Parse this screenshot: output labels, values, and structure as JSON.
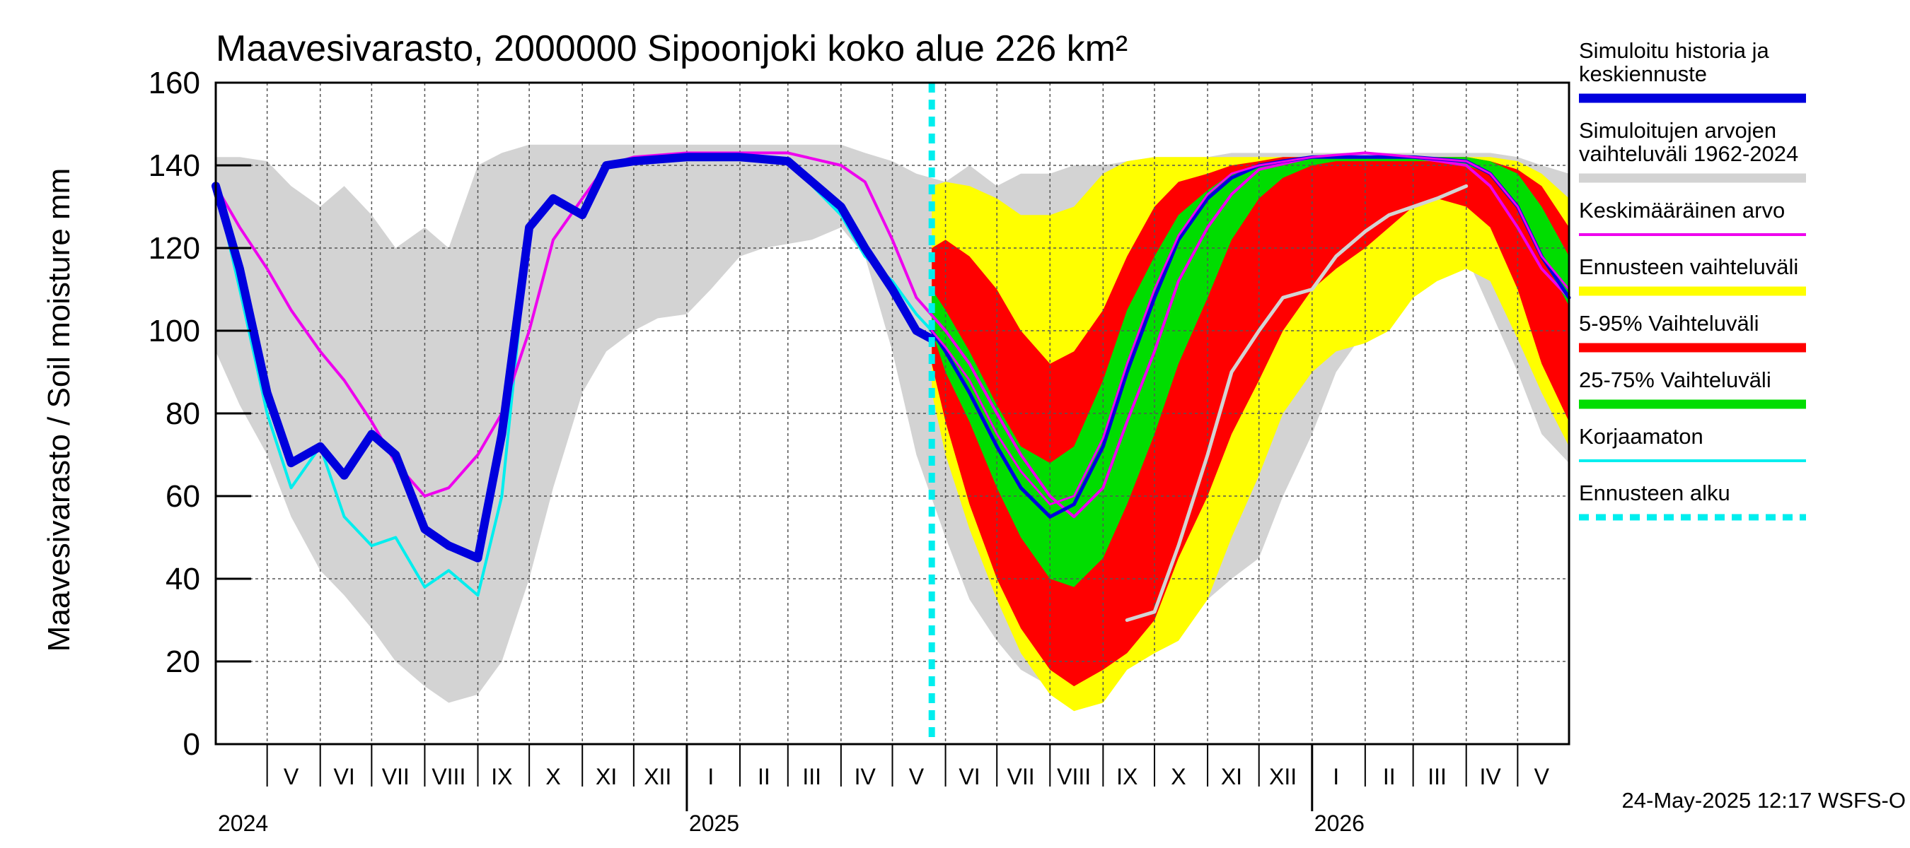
{
  "chart_data": {
    "type": "area",
    "title": "Maavesivarasto, 2000000 Sipoonjoki koko alue 226 km²",
    "ylabel": "Maavesivarasto / Soil moisture   mm",
    "ylim": [
      0,
      160
    ],
    "yticks": [
      0,
      20,
      40,
      60,
      80,
      100,
      120,
      140,
      160
    ],
    "x_range": [
      "2024-04-01",
      "2026-05-31"
    ],
    "forecast_start": "2025-05-24",
    "grid": true,
    "legend_position": "right",
    "footer": "24-May-2025 12:17 WSFS-O",
    "month_ticks": [
      {
        "label": "V",
        "date": "2024-05-15"
      },
      {
        "label": "VI",
        "date": "2024-06-15"
      },
      {
        "label": "VII",
        "date": "2024-07-15"
      },
      {
        "label": "VIII",
        "date": "2024-08-15"
      },
      {
        "label": "IX",
        "date": "2024-09-15"
      },
      {
        "label": "X",
        "date": "2024-10-15"
      },
      {
        "label": "XI",
        "date": "2024-11-15"
      },
      {
        "label": "XII",
        "date": "2024-12-15"
      },
      {
        "label": "I",
        "date": "2025-01-15"
      },
      {
        "label": "II",
        "date": "2025-02-15"
      },
      {
        "label": "III",
        "date": "2025-03-15"
      },
      {
        "label": "IV",
        "date": "2025-04-15"
      },
      {
        "label": "V",
        "date": "2025-05-15"
      },
      {
        "label": "VI",
        "date": "2025-06-15"
      },
      {
        "label": "VII",
        "date": "2025-07-15"
      },
      {
        "label": "VIII",
        "date": "2025-08-15"
      },
      {
        "label": "IX",
        "date": "2025-09-15"
      },
      {
        "label": "X",
        "date": "2025-10-15"
      },
      {
        "label": "XI",
        "date": "2025-11-15"
      },
      {
        "label": "XII",
        "date": "2025-12-15"
      },
      {
        "label": "I",
        "date": "2026-01-15"
      },
      {
        "label": "II",
        "date": "2026-02-15"
      },
      {
        "label": "III",
        "date": "2026-03-15"
      },
      {
        "label": "IV",
        "date": "2026-04-15"
      },
      {
        "label": "V",
        "date": "2026-05-15"
      }
    ],
    "year_labels": [
      {
        "label": "2024",
        "date": "2024-04-01"
      },
      {
        "label": "2025",
        "date": "2025-01-01"
      },
      {
        "label": "2026",
        "date": "2026-01-01"
      }
    ],
    "legend": [
      {
        "label": "Simuloitu historia ja\nkeskiennuste",
        "color": "#0000dd",
        "style": "thick"
      },
      {
        "label": "Simuloitujen arvojen\nvaihteluväli 1962-2024",
        "color": "#d3d3d3",
        "style": "thick"
      },
      {
        "label": "Keskimääräinen arvo",
        "color": "#ee00ee",
        "style": "thin"
      },
      {
        "label": "Ennusteen vaihteluväli",
        "color": "#ffff00",
        "style": "thick"
      },
      {
        "label": "5-95% Vaihteluväli",
        "color": "#ff0000",
        "style": "thick"
      },
      {
        "label": "25-75% Vaihteluväli",
        "color": "#00dd00",
        "style": "thick"
      },
      {
        "label": "Korjaamaton",
        "color": "#00eeee",
        "style": "thin"
      },
      {
        "label": "Ennusteen alku",
        "color": "#00eeee",
        "style": "dashed"
      }
    ],
    "series": [
      {
        "key": "hist_range",
        "kind": "band",
        "color": "#d3d3d3",
        "x": [
          "2024-04-01",
          "2024-04-15",
          "2024-05-01",
          "2024-05-15",
          "2024-06-01",
          "2024-06-15",
          "2024-07-01",
          "2024-07-15",
          "2024-08-01",
          "2024-08-15",
          "2024-09-01",
          "2024-09-15",
          "2024-10-01",
          "2024-10-15",
          "2024-11-01",
          "2024-11-15",
          "2024-12-01",
          "2024-12-15",
          "2025-01-01",
          "2025-01-15",
          "2025-02-01",
          "2025-02-15",
          "2025-03-01",
          "2025-03-15",
          "2025-04-01",
          "2025-04-15",
          "2025-05-01",
          "2025-05-15",
          "2025-06-01",
          "2025-06-15",
          "2025-07-01",
          "2025-07-15",
          "2025-08-01",
          "2025-08-15",
          "2025-09-01",
          "2025-09-15",
          "2025-10-01",
          "2025-10-15",
          "2025-11-01",
          "2025-11-15",
          "2025-12-01",
          "2025-12-15",
          "2026-01-01",
          "2026-01-15",
          "2026-02-01",
          "2026-02-15",
          "2026-03-01",
          "2026-03-15",
          "2026-04-01",
          "2026-04-15",
          "2026-05-01",
          "2026-05-15",
          "2026-05-31"
        ],
        "low": [
          95,
          82,
          70,
          55,
          42,
          36,
          28,
          20,
          14,
          10,
          12,
          20,
          40,
          62,
          85,
          95,
          100,
          103,
          104,
          110,
          118,
          120,
          121,
          122,
          125,
          118,
          95,
          70,
          50,
          35,
          25,
          18,
          14,
          12,
          15,
          22,
          28,
          30,
          35,
          40,
          45,
          60,
          75,
          90,
          100,
          110,
          118,
          122,
          118,
          105,
          90,
          75,
          68
        ],
        "high": [
          142,
          142,
          141,
          135,
          130,
          135,
          128,
          120,
          125,
          120,
          140,
          143,
          145,
          145,
          145,
          145,
          145,
          145,
          145,
          145,
          145,
          145,
          145,
          145,
          145,
          143,
          141,
          138,
          136,
          140,
          135,
          138,
          138,
          140,
          140,
          141,
          142,
          142,
          142,
          143,
          143,
          143,
          143,
          143,
          143,
          143,
          143,
          143,
          143,
          143,
          142,
          140,
          138
        ]
      },
      {
        "key": "forecast_range",
        "kind": "band",
        "color": "#ffff00",
        "x": [
          "2025-05-24",
          "2025-06-01",
          "2025-06-15",
          "2025-07-01",
          "2025-07-15",
          "2025-08-01",
          "2025-08-15",
          "2025-09-01",
          "2025-09-15",
          "2025-10-01",
          "2025-10-15",
          "2025-11-01",
          "2025-11-15",
          "2025-12-01",
          "2025-12-15",
          "2026-01-01",
          "2026-01-15",
          "2026-02-01",
          "2026-02-15",
          "2026-03-01",
          "2026-03-15",
          "2026-04-01",
          "2026-04-15",
          "2026-05-01",
          "2026-05-15",
          "2026-05-31"
        ],
        "low": [
          85,
          70,
          52,
          35,
          22,
          12,
          8,
          10,
          18,
          22,
          25,
          35,
          50,
          65,
          80,
          90,
          95,
          97,
          100,
          108,
          112,
          115,
          112,
          98,
          85,
          72
        ],
        "high": [
          135,
          136,
          135,
          132,
          128,
          128,
          130,
          138,
          141,
          142,
          142,
          142,
          142,
          142,
          142,
          142,
          142,
          142,
          142,
          142,
          142,
          142,
          142,
          141,
          138,
          132
        ]
      },
      {
        "key": "p5_95",
        "kind": "band",
        "color": "#ff0000",
        "x": [
          "2025-05-24",
          "2025-06-01",
          "2025-06-15",
          "2025-07-01",
          "2025-07-15",
          "2025-08-01",
          "2025-08-15",
          "2025-09-01",
          "2025-09-15",
          "2025-10-01",
          "2025-10-15",
          "2025-11-01",
          "2025-11-15",
          "2025-12-01",
          "2025-12-15",
          "2026-01-01",
          "2026-01-15",
          "2026-02-01",
          "2026-02-15",
          "2026-03-01",
          "2026-03-15",
          "2026-04-01",
          "2026-04-15",
          "2026-05-01",
          "2026-05-15",
          "2026-05-31"
        ],
        "low": [
          92,
          78,
          58,
          40,
          28,
          18,
          14,
          18,
          22,
          30,
          45,
          60,
          75,
          88,
          100,
          110,
          115,
          120,
          125,
          130,
          132,
          130,
          125,
          110,
          92,
          78
        ],
        "high": [
          120,
          122,
          118,
          110,
          100,
          92,
          95,
          105,
          118,
          130,
          136,
          138,
          140,
          141,
          142,
          142,
          142,
          142,
          142,
          142,
          142,
          142,
          141,
          139,
          135,
          125
        ]
      },
      {
        "key": "p25_75",
        "kind": "band",
        "color": "#00dd00",
        "x": [
          "2025-05-24",
          "2025-06-01",
          "2025-06-15",
          "2025-07-01",
          "2025-07-15",
          "2025-08-01",
          "2025-08-15",
          "2025-09-01",
          "2025-09-15",
          "2025-10-01",
          "2025-10-15",
          "2025-11-01",
          "2025-11-15",
          "2025-12-01",
          "2025-12-15",
          "2026-01-01",
          "2026-01-15",
          "2026-02-01",
          "2026-02-15",
          "2026-03-01",
          "2026-03-15",
          "2026-04-01",
          "2026-04-15",
          "2026-05-01",
          "2026-05-15",
          "2026-05-31"
        ],
        "low": [
          100,
          90,
          78,
          62,
          50,
          40,
          38,
          45,
          58,
          75,
          92,
          108,
          122,
          132,
          137,
          140,
          141,
          141,
          141,
          141,
          141,
          140,
          138,
          130,
          118,
          106
        ],
        "high": [
          110,
          105,
          95,
          82,
          72,
          68,
          72,
          88,
          105,
          118,
          128,
          134,
          138,
          140,
          141,
          142,
          142,
          142,
          142,
          142,
          142,
          142,
          141,
          138,
          130,
          118
        ]
      },
      {
        "key": "uncorrected",
        "kind": "line",
        "color": "#00eeee",
        "width": 4,
        "x": [
          "2024-04-01",
          "2024-04-15",
          "2024-05-01",
          "2024-05-15",
          "2024-06-01",
          "2024-06-15",
          "2024-07-01",
          "2024-07-15",
          "2024-08-01",
          "2024-08-15",
          "2024-09-01",
          "2024-09-15",
          "2024-10-01",
          "2024-10-15",
          "2024-11-01",
          "2024-11-15",
          "2024-12-01",
          "2025-01-01",
          "2025-02-01",
          "2025-03-01",
          "2025-04-01",
          "2025-04-15",
          "2025-05-01",
          "2025-05-15",
          "2025-05-24"
        ],
        "y": [
          135,
          110,
          80,
          62,
          72,
          55,
          48,
          50,
          38,
          42,
          36,
          60,
          125,
          132,
          128,
          140,
          141,
          142,
          142,
          141,
          128,
          118,
          112,
          104,
          100
        ]
      },
      {
        "key": "mean",
        "kind": "line",
        "color": "#ee00ee",
        "width": 4,
        "x": [
          "2024-04-01",
          "2024-04-15",
          "2024-05-01",
          "2024-05-15",
          "2024-06-01",
          "2024-06-15",
          "2024-07-01",
          "2024-07-15",
          "2024-08-01",
          "2024-08-15",
          "2024-09-01",
          "2024-09-15",
          "2024-10-01",
          "2024-10-15",
          "2024-11-01",
          "2024-11-15",
          "2024-12-01",
          "2025-01-01",
          "2025-02-01",
          "2025-03-01",
          "2025-04-01",
          "2025-04-15",
          "2025-05-01",
          "2025-05-15",
          "2025-06-01",
          "2025-06-15",
          "2025-07-01",
          "2025-07-15",
          "2025-08-01",
          "2025-08-15",
          "2025-09-01",
          "2025-09-15",
          "2025-10-01",
          "2025-10-15",
          "2025-11-01",
          "2025-11-15",
          "2025-12-01",
          "2026-01-01",
          "2026-02-01",
          "2026-03-01",
          "2026-04-01",
          "2026-04-15",
          "2026-05-01",
          "2026-05-15",
          "2026-05-31"
        ],
        "y": [
          135,
          125,
          115,
          105,
          95,
          88,
          78,
          68,
          60,
          62,
          70,
          80,
          100,
          122,
          132,
          140,
          142,
          143,
          143,
          143,
          140,
          136,
          122,
          108,
          100,
          92,
          80,
          70,
          60,
          55,
          62,
          78,
          95,
          112,
          125,
          133,
          139,
          142,
          143,
          142,
          140,
          135,
          125,
          115,
          108
        ]
      },
      {
        "key": "forecast_mean_1",
        "kind": "line",
        "color": "#0000dd",
        "width": 5,
        "x": [
          "2025-05-24",
          "2025-06-01",
          "2025-06-15",
          "2025-07-01",
          "2025-07-15",
          "2025-08-01",
          "2025-08-15",
          "2025-09-01",
          "2025-09-15",
          "2025-10-01",
          "2025-10-15",
          "2025-11-01",
          "2025-11-15",
          "2025-12-01",
          "2025-12-15",
          "2026-01-01",
          "2026-02-01",
          "2026-03-01",
          "2026-04-01",
          "2026-04-15",
          "2026-05-01",
          "2026-05-15",
          "2026-05-31"
        ],
        "y": [
          100,
          95,
          85,
          72,
          62,
          55,
          58,
          72,
          90,
          108,
          122,
          132,
          137,
          140,
          141,
          142,
          142,
          142,
          141,
          138,
          130,
          118,
          108
        ]
      },
      {
        "key": "forecast_mean_2",
        "kind": "line",
        "color": "#ee00ee",
        "width": 3,
        "x": [
          "2025-05-24",
          "2025-06-01",
          "2025-06-15",
          "2025-07-01",
          "2025-07-15",
          "2025-08-01",
          "2025-08-15",
          "2025-09-01",
          "2025-09-15",
          "2025-10-01",
          "2025-10-15",
          "2025-11-01",
          "2025-11-15",
          "2025-12-01",
          "2026-01-01",
          "2026-02-01",
          "2026-03-01",
          "2026-04-01",
          "2026-04-15",
          "2026-05-01",
          "2026-05-15",
          "2026-05-31"
        ],
        "y": [
          100,
          96,
          88,
          75,
          66,
          58,
          60,
          74,
          92,
          110,
          123,
          133,
          138,
          140,
          142,
          143,
          142,
          141,
          138,
          130,
          118,
          110
        ]
      },
      {
        "key": "sim_history",
        "kind": "line",
        "color": "#0000dd",
        "width": 12,
        "x": [
          "2024-04-01",
          "2024-04-15",
          "2024-05-01",
          "2024-05-15",
          "2024-06-01",
          "2024-06-15",
          "2024-07-01",
          "2024-07-15",
          "2024-08-01",
          "2024-08-15",
          "2024-09-01",
          "2024-09-15",
          "2024-10-01",
          "2024-10-15",
          "2024-11-01",
          "2024-11-15",
          "2024-12-01",
          "2025-01-01",
          "2025-02-01",
          "2025-03-01",
          "2025-04-01",
          "2025-04-15",
          "2025-05-01",
          "2025-05-15",
          "2025-05-24"
        ],
        "y": [
          135,
          115,
          85,
          68,
          72,
          65,
          75,
          70,
          52,
          48,
          45,
          75,
          125,
          132,
          128,
          140,
          141,
          142,
          142,
          141,
          130,
          120,
          110,
          100,
          98
        ]
      },
      {
        "key": "unknown_light",
        "kind": "line",
        "color": "#d3d3d3",
        "width": 5,
        "x": [
          "2025-09-15",
          "2025-10-01",
          "2025-10-15",
          "2025-11-01",
          "2025-11-15",
          "2025-12-01",
          "2025-12-15",
          "2026-01-01",
          "2026-01-15",
          "2026-02-01",
          "2026-02-15",
          "2026-03-01",
          "2026-03-15",
          "2026-04-01"
        ],
        "y": [
          30,
          32,
          48,
          70,
          90,
          100,
          108,
          110,
          118,
          124,
          128,
          130,
          132,
          135
        ]
      }
    ]
  }
}
